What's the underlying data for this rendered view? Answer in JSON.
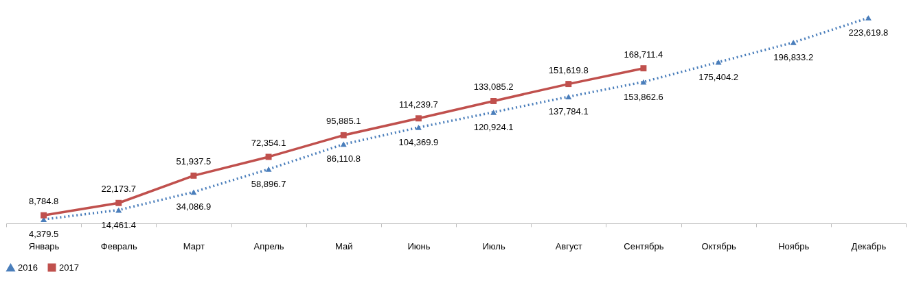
{
  "chart_data": {
    "type": "line",
    "categories": [
      "Январь",
      "Февраль",
      "Март",
      "Апрель",
      "Май",
      "Июнь",
      "Июль",
      "Август",
      "Сентябрь",
      "Октябрь",
      "Ноябрь",
      "Декабрь"
    ],
    "series": [
      {
        "name": "2016",
        "color": "#4a7ebb",
        "marker": "triangle",
        "line_style": "dotted",
        "values": [
          4379.5,
          14461.4,
          34086.9,
          58896.7,
          86110.8,
          104369.9,
          120924.1,
          137784.1,
          153862.6,
          175404.2,
          196833.2,
          223619.8
        ],
        "value_labels": [
          "4,379.5",
          "14,461.4",
          "34,086.9",
          "58,896.7",
          "86,110.8",
          "104,369.9",
          "120,924.1",
          "137,784.1",
          "153,862.6",
          "175,404.2",
          "196,833.2",
          "223,619.8"
        ]
      },
      {
        "name": "2017",
        "color": "#c0504d",
        "marker": "square",
        "line_style": "solid",
        "values": [
          8784.8,
          22173.7,
          51937.5,
          72354.1,
          95885.1,
          114239.7,
          133085.2,
          151619.8,
          168711.4,
          null,
          null,
          null
        ],
        "value_labels": [
          "8,784.8",
          "22,173.7",
          "51,937.5",
          "72,354.1",
          "95,885.1",
          "114,239.7",
          "133,085.2",
          "151,619.8",
          "168,711.4",
          null,
          null,
          null
        ]
      }
    ],
    "grid": false,
    "legend": "bottom"
  }
}
